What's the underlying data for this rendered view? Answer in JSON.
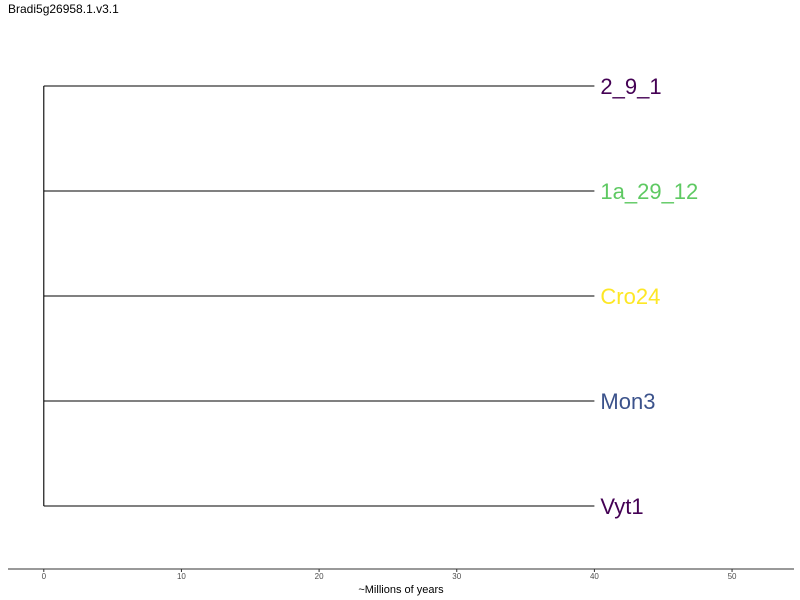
{
  "title": "Bradi5g26958.1.v3.1",
  "chart_data": {
    "type": "tree",
    "title": "Bradi5g26958.1.v3.1",
    "xlabel": "~Millions of years",
    "xlim": [
      -2.6,
      54.5
    ],
    "x_ticks": [
      "0",
      "10",
      "20",
      "30",
      "40",
      "50"
    ],
    "root_x": 0,
    "tips": [
      {
        "label": "2_9_1",
        "x": 40,
        "color": "#440154"
      },
      {
        "label": "1a_29_12",
        "x": 40,
        "color": "#5EC962"
      },
      {
        "label": "Cro24",
        "x": 40,
        "color": "#FDE725"
      },
      {
        "label": "Mon3",
        "x": 40,
        "color": "#3B528B"
      },
      {
        "label": "Vyt1",
        "x": 40,
        "color": "#440154"
      }
    ],
    "branch_color": "#000000"
  }
}
